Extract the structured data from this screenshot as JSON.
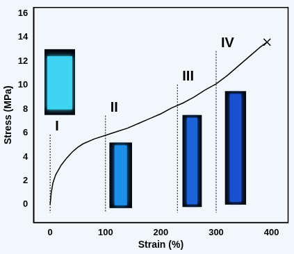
{
  "chart_data": {
    "type": "line",
    "x_label": "Strain (%)",
    "y_label": "Stress (MPa)",
    "xlim": [
      -30,
      430
    ],
    "ylim": [
      -1.5,
      16.5
    ],
    "xticks": [
      0,
      100,
      200,
      300,
      400
    ],
    "yticks": [
      0,
      2,
      4,
      6,
      8,
      10,
      12,
      14,
      16
    ],
    "grid": false,
    "x": [
      0,
      2,
      5,
      10,
      20,
      30,
      40,
      50,
      60,
      80,
      100,
      120,
      140,
      160,
      180,
      200,
      220,
      240,
      260,
      280,
      300,
      320,
      340,
      360,
      380,
      392
    ],
    "series": [
      {
        "color": "#000000",
        "line_style": "solid",
        "marker": "none",
        "values": [
          0,
          1.0,
          1.8,
          2.5,
          3.3,
          3.9,
          4.4,
          4.8,
          5.1,
          5.5,
          5.8,
          6.1,
          6.4,
          6.8,
          7.2,
          7.6,
          8.1,
          8.5,
          9.0,
          9.6,
          10.1,
          10.8,
          11.6,
          12.4,
          13.2,
          13.6
        ]
      },
      {
        "type": "scatter",
        "color": "#000000",
        "marker": "x",
        "x": [
          392
        ],
        "values": [
          13.6
        ]
      }
    ],
    "annotations": [
      {
        "text": "I",
        "x": 0,
        "y": 6.2
      },
      {
        "text": "II",
        "x": 100,
        "y": 7.8
      },
      {
        "text": "III",
        "x": 230,
        "y": 10.4
      },
      {
        "text": "IV",
        "x": 300,
        "y": 13.2
      }
    ]
  }
}
